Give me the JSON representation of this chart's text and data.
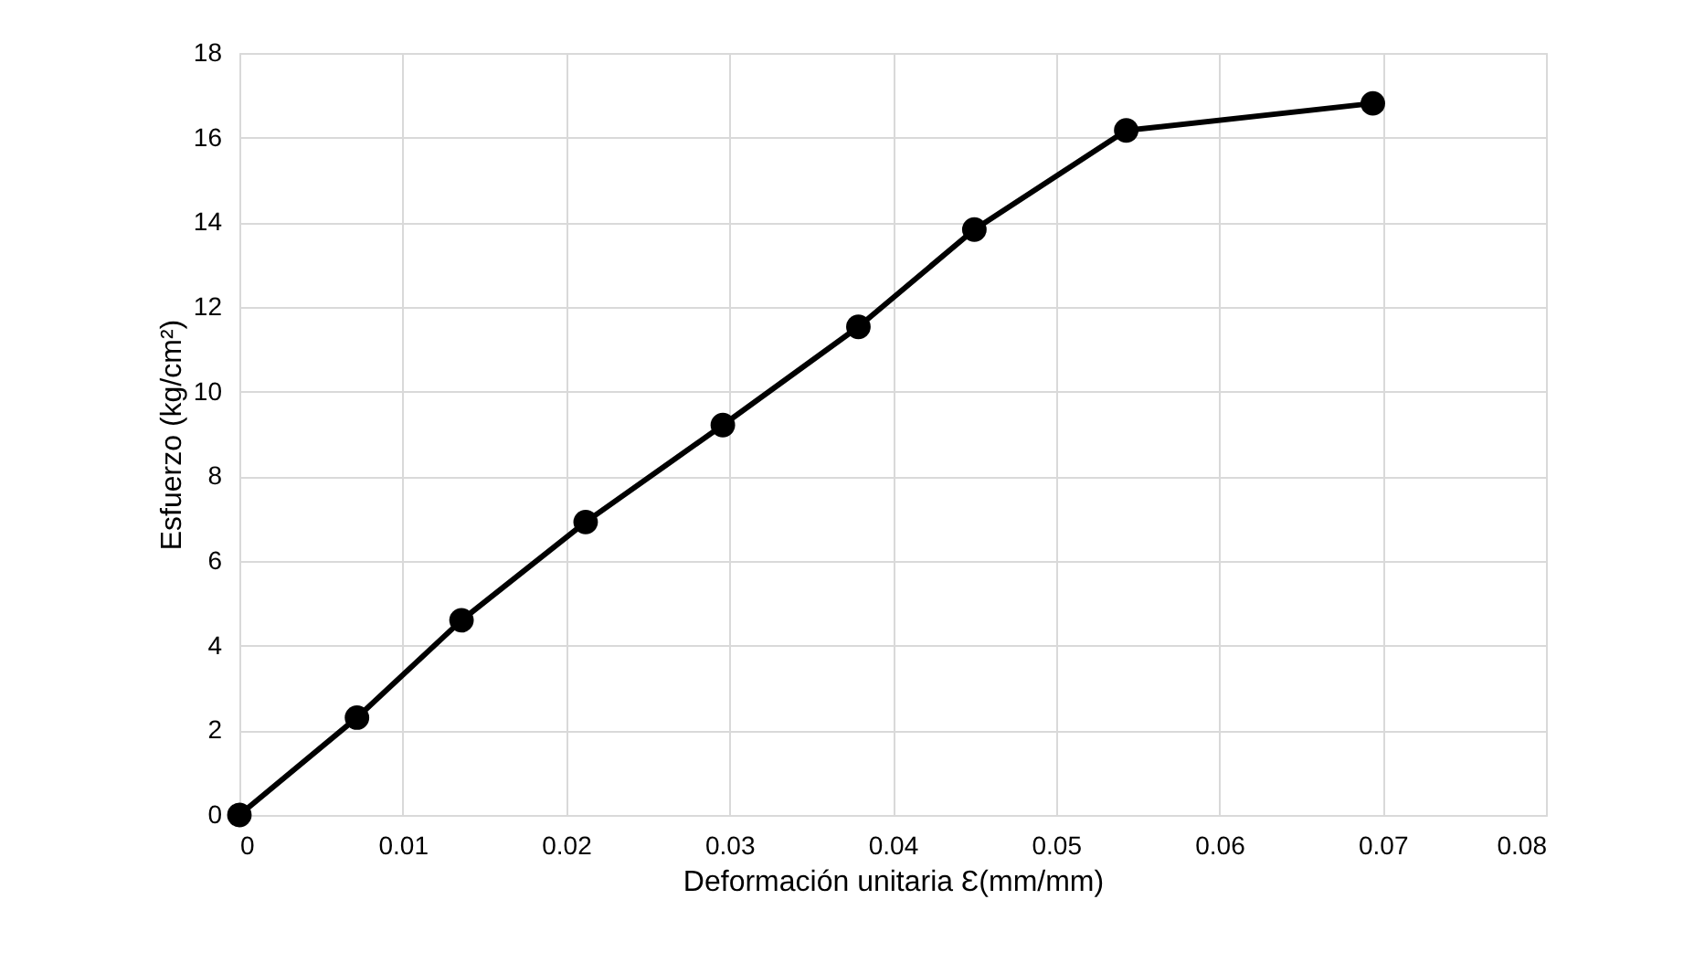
{
  "chart_data": {
    "type": "line",
    "xlabel": "Deformación unitaria Ɛ(mm/mm)",
    "ylabel": "Esfuerzo (kg/cm²)",
    "x": [
      0,
      0.0072,
      0.0136,
      0.0212,
      0.0296,
      0.0379,
      0.045,
      0.0543,
      0.0694
    ],
    "series": [
      {
        "color": "#000000",
        "values": [
          0,
          2.3,
          4.6,
          6.92,
          9.21,
          11.53,
          13.83,
          16.17,
          16.81
        ]
      }
    ],
    "xlim": [
      0,
      0.08
    ],
    "xticks": [
      0,
      0.01,
      0.02,
      0.03,
      0.04,
      0.05,
      0.06,
      0.07,
      0.08
    ],
    "ylim": [
      0,
      18
    ],
    "yticks": [
      0,
      2,
      4,
      6,
      8,
      10,
      12,
      14,
      16,
      18
    ],
    "grid": true,
    "marker": "circle",
    "line_style": "solid"
  }
}
